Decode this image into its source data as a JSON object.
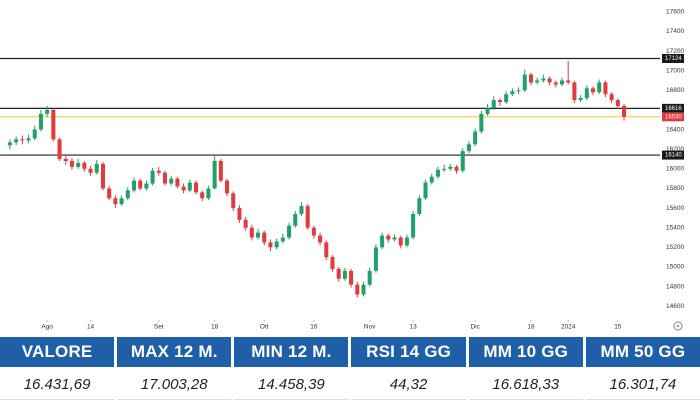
{
  "chart_data": {
    "type": "candlestick",
    "up_color": "#22a06b",
    "down_color": "#e23b3b",
    "ylim": [
      14480,
      17720
    ],
    "yticks": [
      14600,
      14800,
      15000,
      15200,
      15400,
      15600,
      15800,
      16000,
      16200,
      16400,
      16600,
      16800,
      17000,
      17200,
      17400,
      17600
    ],
    "xlim": [
      -1.6,
      104.8
    ],
    "xticks": [
      {
        "value": 6,
        "label": "Ago"
      },
      {
        "value": 13,
        "label": "14"
      },
      {
        "value": 24,
        "label": "Set"
      },
      {
        "value": 33,
        "label": "18"
      },
      {
        "value": 41,
        "label": "Ott"
      },
      {
        "value": 49,
        "label": "16"
      },
      {
        "value": 58,
        "label": "Nov"
      },
      {
        "value": 65,
        "label": "13"
      },
      {
        "value": 75,
        "label": "Dic"
      },
      {
        "value": 84,
        "label": "18"
      },
      {
        "value": 90,
        "label": "2024"
      },
      {
        "value": 98,
        "label": "15"
      }
    ],
    "grid": false,
    "levels": [
      17124,
      16616,
      16140
    ],
    "last_price": 16530,
    "last_price_color": "#f0c419",
    "ohlc": [
      [
        16240,
        16300,
        16200,
        16270
      ],
      [
        16270,
        16330,
        16240,
        16300
      ],
      [
        16300,
        16340,
        16250,
        16290
      ],
      [
        16290,
        16350,
        16260,
        16310
      ],
      [
        16310,
        16440,
        16290,
        16400
      ],
      [
        16400,
        16600,
        16380,
        16560
      ],
      [
        16560,
        16640,
        16530,
        16600
      ],
      [
        16600,
        16620,
        16280,
        16300
      ],
      [
        16300,
        16320,
        16080,
        16100
      ],
      [
        16100,
        16150,
        16040,
        16080
      ],
      [
        16080,
        16110,
        15990,
        16020
      ],
      [
        16020,
        16100,
        16000,
        16060
      ],
      [
        16060,
        16080,
        15970,
        16000
      ],
      [
        16000,
        16030,
        15930,
        15960
      ],
      [
        15960,
        16090,
        15940,
        16050
      ],
      [
        16050,
        16070,
        15780,
        15800
      ],
      [
        15800,
        15830,
        15680,
        15700
      ],
      [
        15700,
        15730,
        15600,
        15640
      ],
      [
        15640,
        15730,
        15620,
        15700
      ],
      [
        15700,
        15810,
        15680,
        15780
      ],
      [
        15780,
        15910,
        15760,
        15880
      ],
      [
        15880,
        15900,
        15780,
        15800
      ],
      [
        15800,
        15880,
        15780,
        15850
      ],
      [
        15850,
        16010,
        15830,
        15980
      ],
      [
        15980,
        16020,
        15930,
        15960
      ],
      [
        15960,
        15980,
        15830,
        15850
      ],
      [
        15850,
        15930,
        15830,
        15900
      ],
      [
        15900,
        15920,
        15800,
        15820
      ],
      [
        15820,
        15850,
        15750,
        15780
      ],
      [
        15780,
        15890,
        15760,
        15860
      ],
      [
        15860,
        15880,
        15740,
        15760
      ],
      [
        15760,
        15780,
        15670,
        15700
      ],
      [
        15700,
        15830,
        15680,
        15800
      ],
      [
        15800,
        16130,
        15790,
        16080
      ],
      [
        16080,
        16100,
        15860,
        15880
      ],
      [
        15880,
        15900,
        15720,
        15750
      ],
      [
        15750,
        15770,
        15570,
        15600
      ],
      [
        15600,
        15630,
        15450,
        15480
      ],
      [
        15480,
        15510,
        15370,
        15400
      ],
      [
        15400,
        15430,
        15270,
        15300
      ],
      [
        15300,
        15390,
        15280,
        15350
      ],
      [
        15350,
        15370,
        15220,
        15250
      ],
      [
        15250,
        15280,
        15160,
        15200
      ],
      [
        15200,
        15290,
        15180,
        15260
      ],
      [
        15260,
        15340,
        15240,
        15300
      ],
      [
        15300,
        15450,
        15280,
        15420
      ],
      [
        15420,
        15570,
        15400,
        15540
      ],
      [
        15540,
        15660,
        15520,
        15620
      ],
      [
        15620,
        15640,
        15380,
        15400
      ],
      [
        15400,
        15420,
        15290,
        15320
      ],
      [
        15320,
        15350,
        15220,
        15250
      ],
      [
        15250,
        15270,
        15070,
        15100
      ],
      [
        15100,
        15120,
        14950,
        14980
      ],
      [
        14980,
        15000,
        14850,
        14880
      ],
      [
        14880,
        14990,
        14860,
        14960
      ],
      [
        14960,
        14980,
        14790,
        14820
      ],
      [
        14820,
        14850,
        14690,
        14720
      ],
      [
        14720,
        14850,
        14700,
        14820
      ],
      [
        14820,
        14990,
        14800,
        14960
      ],
      [
        14960,
        15230,
        14940,
        15200
      ],
      [
        15200,
        15350,
        15180,
        15320
      ],
      [
        15320,
        15340,
        15250,
        15280
      ],
      [
        15280,
        15330,
        15260,
        15300
      ],
      [
        15300,
        15320,
        15190,
        15220
      ],
      [
        15220,
        15330,
        15200,
        15300
      ],
      [
        15300,
        15570,
        15280,
        15540
      ],
      [
        15540,
        15730,
        15520,
        15700
      ],
      [
        15700,
        15890,
        15680,
        15860
      ],
      [
        15860,
        15950,
        15840,
        15920
      ],
      [
        15920,
        16020,
        15900,
        15990
      ],
      [
        15990,
        16040,
        15970,
        16000
      ],
      [
        16000,
        16050,
        15980,
        16020
      ],
      [
        16020,
        16040,
        15950,
        15980
      ],
      [
        15980,
        16210,
        15960,
        16180
      ],
      [
        16180,
        16280,
        16160,
        16250
      ],
      [
        16250,
        16410,
        16230,
        16380
      ],
      [
        16380,
        16590,
        16360,
        16560
      ],
      [
        16560,
        16660,
        16540,
        16620
      ],
      [
        16620,
        16740,
        16600,
        16700
      ],
      [
        16700,
        16720,
        16640,
        16680
      ],
      [
        16680,
        16790,
        16660,
        16760
      ],
      [
        16760,
        16820,
        16740,
        16790
      ],
      [
        16790,
        16830,
        16760,
        16800
      ],
      [
        16800,
        17010,
        16780,
        16960
      ],
      [
        16960,
        16980,
        16850,
        16880
      ],
      [
        16880,
        16930,
        16860,
        16900
      ],
      [
        16900,
        16960,
        16880,
        16920
      ],
      [
        16920,
        16940,
        16850,
        16880
      ],
      [
        16880,
        16900,
        16830,
        16860
      ],
      [
        16860,
        16930,
        16840,
        16900
      ],
      [
        16900,
        17100,
        16860,
        16880
      ],
      [
        16880,
        16900,
        16670,
        16700
      ],
      [
        16700,
        16750,
        16680,
        16720
      ],
      [
        16720,
        16850,
        16700,
        16820
      ],
      [
        16820,
        16840,
        16750,
        16780
      ],
      [
        16780,
        16910,
        16760,
        16880
      ],
      [
        16880,
        16900,
        16730,
        16760
      ],
      [
        16760,
        16780,
        16670,
        16700
      ],
      [
        16700,
        16720,
        16610,
        16640
      ],
      [
        16640,
        16660,
        16490,
        16530
      ]
    ]
  },
  "table": {
    "header": [
      "VALORE",
      "MAX 12 M.",
      "MIN 12 M.",
      "RSI 14 GG",
      "MM 10 GG",
      "MM 50 GG"
    ],
    "values": [
      "16.431,69",
      "17.003,28",
      "14.458,39",
      "44,32",
      "16.618,33",
      "16.301,74"
    ]
  }
}
